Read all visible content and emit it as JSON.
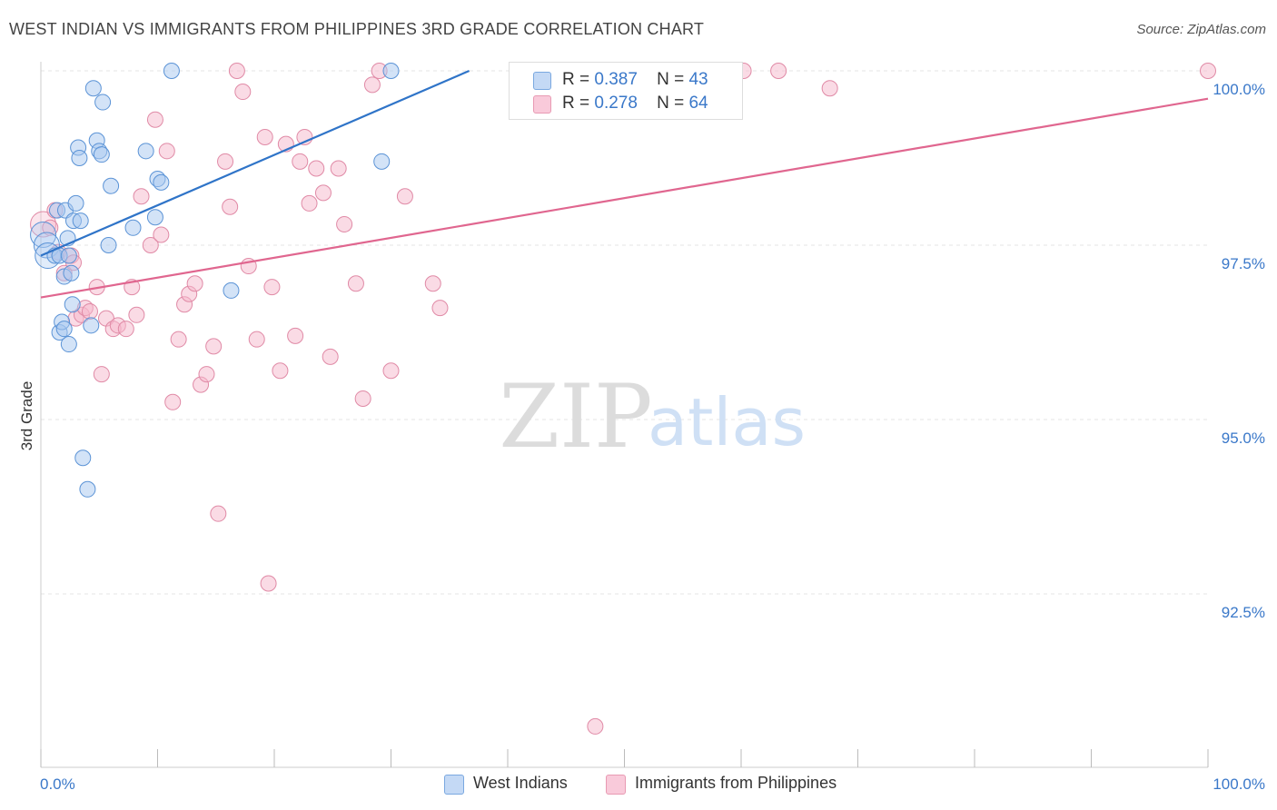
{
  "title": "WEST INDIAN VS IMMIGRANTS FROM PHILIPPINES 3RD GRADE CORRELATION CHART",
  "source": "Source: ZipAtlas.com",
  "watermark": {
    "zip": "ZIP",
    "atlas": "atlas"
  },
  "legend": {
    "r_label": "R =",
    "n_label": "N =",
    "series": [
      {
        "r": "0.387",
        "n": "43"
      },
      {
        "r": "0.278",
        "n": "64"
      }
    ]
  },
  "bottom_legend": [
    "West Indians",
    "Immigrants from Philippines"
  ],
  "colors": {
    "blue_fill": "#a8c8f0",
    "blue_stroke": "#5b93d6",
    "blue_line": "#2f74c8",
    "pink_fill": "#f6b8cc",
    "pink_stroke": "#e08aa6",
    "pink_line": "#e0668f",
    "tick_label": "#3a78c9",
    "grid": "#e6e6e6"
  },
  "chart_data": {
    "type": "scatter",
    "title": "WEST INDIAN VS IMMIGRANTS FROM PHILIPPINES 3RD GRADE CORRELATION CHART",
    "xlabel": "",
    "ylabel": "3rd Grade",
    "xlim": [
      0,
      100
    ],
    "ylim": [
      90.0,
      100.5
    ],
    "x_tick_labels": [
      "0.0%",
      "100.0%"
    ],
    "y_ticks": [
      92.5,
      95.0,
      97.5,
      100.0
    ],
    "y_tick_labels": [
      "92.5%",
      "95.0%",
      "97.5%",
      "100.0%"
    ],
    "grid": true,
    "series": [
      {
        "name": "West Indians",
        "r": 0.387,
        "n": 43,
        "trend": {
          "x": [
            0,
            36.7
          ],
          "y": [
            97.35,
            100.0
          ]
        },
        "points": [
          {
            "x": 0.2,
            "y": 97.65,
            "big": true
          },
          {
            "x": 0.5,
            "y": 97.5,
            "big": true
          },
          {
            "x": 0.6,
            "y": 97.35,
            "big": true
          },
          {
            "x": 1.2,
            "y": 97.35
          },
          {
            "x": 1.4,
            "y": 98.0
          },
          {
            "x": 1.6,
            "y": 97.35
          },
          {
            "x": 1.6,
            "y": 96.25
          },
          {
            "x": 1.8,
            "y": 96.4
          },
          {
            "x": 2.0,
            "y": 96.3
          },
          {
            "x": 2.0,
            "y": 97.05
          },
          {
            "x": 2.1,
            "y": 98.0
          },
          {
            "x": 2.3,
            "y": 97.6
          },
          {
            "x": 2.4,
            "y": 97.35
          },
          {
            "x": 2.4,
            "y": 96.08
          },
          {
            "x": 2.6,
            "y": 97.1
          },
          {
            "x": 2.7,
            "y": 96.65
          },
          {
            "x": 2.8,
            "y": 97.85
          },
          {
            "x": 3.0,
            "y": 98.1
          },
          {
            "x": 3.2,
            "y": 98.9
          },
          {
            "x": 3.3,
            "y": 98.75
          },
          {
            "x": 3.4,
            "y": 97.85
          },
          {
            "x": 3.6,
            "y": 94.45
          },
          {
            "x": 4.0,
            "y": 94.0
          },
          {
            "x": 4.3,
            "y": 96.35
          },
          {
            "x": 4.5,
            "y": 99.75
          },
          {
            "x": 4.8,
            "y": 99.0
          },
          {
            "x": 5.0,
            "y": 98.85
          },
          {
            "x": 5.2,
            "y": 98.8
          },
          {
            "x": 5.3,
            "y": 99.55
          },
          {
            "x": 5.8,
            "y": 97.5
          },
          {
            "x": 6.0,
            "y": 98.35
          },
          {
            "x": 7.9,
            "y": 97.75
          },
          {
            "x": 9.0,
            "y": 98.85
          },
          {
            "x": 9.8,
            "y": 97.9
          },
          {
            "x": 10.0,
            "y": 98.45
          },
          {
            "x": 10.3,
            "y": 98.4
          },
          {
            "x": 11.2,
            "y": 100.0
          },
          {
            "x": 16.3,
            "y": 96.85
          },
          {
            "x": 29.2,
            "y": 98.7
          },
          {
            "x": 30.0,
            "y": 100.0
          }
        ]
      },
      {
        "name": "Immigrants from Philippines",
        "r": 0.278,
        "n": 64,
        "trend": {
          "x": [
            0,
            100
          ],
          "y": [
            96.75,
            99.6
          ]
        },
        "points": [
          {
            "x": 0.2,
            "y": 97.8,
            "big": true
          },
          {
            "x": 0.8,
            "y": 97.75
          },
          {
            "x": 1.2,
            "y": 98.0
          },
          {
            "x": 1.5,
            "y": 97.4
          },
          {
            "x": 2.0,
            "y": 97.1
          },
          {
            "x": 2.6,
            "y": 97.35
          },
          {
            "x": 2.8,
            "y": 97.25
          },
          {
            "x": 3.0,
            "y": 96.45
          },
          {
            "x": 3.5,
            "y": 96.5
          },
          {
            "x": 3.8,
            "y": 96.6
          },
          {
            "x": 4.2,
            "y": 96.55
          },
          {
            "x": 4.8,
            "y": 96.9
          },
          {
            "x": 5.2,
            "y": 95.65
          },
          {
            "x": 5.6,
            "y": 96.45
          },
          {
            "x": 6.2,
            "y": 96.3
          },
          {
            "x": 6.6,
            "y": 96.35
          },
          {
            "x": 7.3,
            "y": 96.3
          },
          {
            "x": 7.8,
            "y": 96.9
          },
          {
            "x": 8.2,
            "y": 96.5
          },
          {
            "x": 8.6,
            "y": 98.2
          },
          {
            "x": 9.4,
            "y": 97.5
          },
          {
            "x": 9.8,
            "y": 99.3
          },
          {
            "x": 10.3,
            "y": 97.65
          },
          {
            "x": 10.8,
            "y": 98.85
          },
          {
            "x": 11.3,
            "y": 95.25
          },
          {
            "x": 11.8,
            "y": 96.15
          },
          {
            "x": 12.3,
            "y": 96.65
          },
          {
            "x": 12.7,
            "y": 96.8
          },
          {
            "x": 13.2,
            "y": 96.95
          },
          {
            "x": 13.7,
            "y": 95.5
          },
          {
            "x": 14.2,
            "y": 95.65
          },
          {
            "x": 14.8,
            "y": 96.05
          },
          {
            "x": 15.2,
            "y": 93.65
          },
          {
            "x": 15.8,
            "y": 98.7
          },
          {
            "x": 16.2,
            "y": 98.05
          },
          {
            "x": 16.8,
            "y": 100.0
          },
          {
            "x": 17.3,
            "y": 99.7
          },
          {
            "x": 17.8,
            "y": 97.2
          },
          {
            "x": 18.5,
            "y": 96.15
          },
          {
            "x": 19.2,
            "y": 99.05
          },
          {
            "x": 19.5,
            "y": 92.65
          },
          {
            "x": 19.8,
            "y": 96.9
          },
          {
            "x": 20.5,
            "y": 95.7
          },
          {
            "x": 21.0,
            "y": 98.95
          },
          {
            "x": 21.8,
            "y": 96.2
          },
          {
            "x": 22.2,
            "y": 98.7
          },
          {
            "x": 22.6,
            "y": 99.05
          },
          {
            "x": 23.0,
            "y": 98.1
          },
          {
            "x": 23.6,
            "y": 98.6
          },
          {
            "x": 24.2,
            "y": 98.25
          },
          {
            "x": 24.8,
            "y": 95.9
          },
          {
            "x": 25.5,
            "y": 98.6
          },
          {
            "x": 26.0,
            "y": 97.8
          },
          {
            "x": 27.0,
            "y": 96.95
          },
          {
            "x": 27.6,
            "y": 95.3
          },
          {
            "x": 28.4,
            "y": 99.8
          },
          {
            "x": 29.0,
            "y": 100.0
          },
          {
            "x": 30.0,
            "y": 95.7
          },
          {
            "x": 31.2,
            "y": 98.2
          },
          {
            "x": 33.6,
            "y": 96.95
          },
          {
            "x": 34.2,
            "y": 96.6
          },
          {
            "x": 47.5,
            "y": 90.6
          },
          {
            "x": 60.2,
            "y": 100.0
          },
          {
            "x": 63.2,
            "y": 100.0
          },
          {
            "x": 67.6,
            "y": 99.75
          },
          {
            "x": 100.0,
            "y": 100.0
          }
        ]
      }
    ]
  }
}
